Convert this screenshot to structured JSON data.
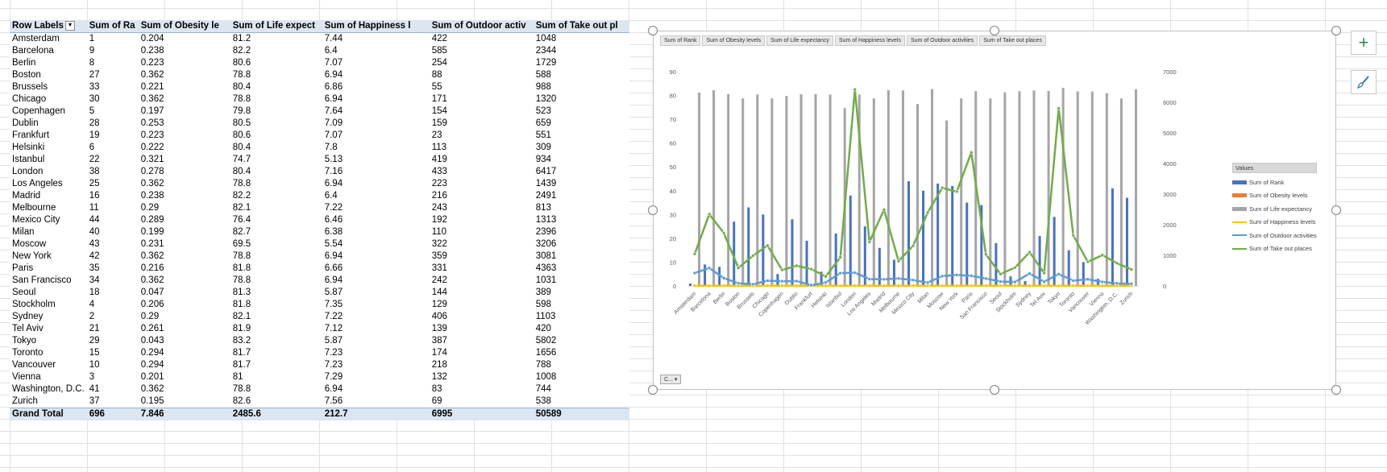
{
  "pivot": {
    "headers": [
      "Row Labels",
      "Sum of Ra",
      "Sum of Obesity le",
      "Sum of Life expect",
      "Sum of Happiness l",
      "Sum of Outdoor activ",
      "Sum of Take out pl"
    ],
    "rows": [
      [
        "Amsterdam",
        "1",
        "0.204",
        "81.2",
        "7.44",
        "422",
        "1048"
      ],
      [
        "Barcelona",
        "9",
        "0.238",
        "82.2",
        "6.4",
        "585",
        "2344"
      ],
      [
        "Berlin",
        "8",
        "0.223",
        "80.6",
        "7.07",
        "254",
        "1729"
      ],
      [
        "Boston",
        "27",
        "0.362",
        "78.8",
        "6.94",
        "88",
        "588"
      ],
      [
        "Brussels",
        "33",
        "0.221",
        "80.4",
        "6.86",
        "55",
        "988"
      ],
      [
        "Chicago",
        "30",
        "0.362",
        "78.8",
        "6.94",
        "171",
        "1320"
      ],
      [
        "Copenhagen",
        "5",
        "0.197",
        "79.8",
        "7.64",
        "154",
        "523"
      ],
      [
        "Dublin",
        "28",
        "0.253",
        "80.5",
        "7.09",
        "159",
        "659"
      ],
      [
        "Frankfurt",
        "19",
        "0.223",
        "80.6",
        "7.07",
        "23",
        "551"
      ],
      [
        "Helsinki",
        "6",
        "0.222",
        "80.4",
        "7.8",
        "113",
        "309"
      ],
      [
        "Istanbul",
        "22",
        "0.321",
        "74.7",
        "5.13",
        "419",
        "934"
      ],
      [
        "London",
        "38",
        "0.278",
        "80.4",
        "7.16",
        "433",
        "6417"
      ],
      [
        "Los Angeles",
        "25",
        "0.362",
        "78.8",
        "6.94",
        "223",
        "1439"
      ],
      [
        "Madrid",
        "16",
        "0.238",
        "82.2",
        "6.4",
        "216",
        "2491"
      ],
      [
        "Melbourne",
        "11",
        "0.29",
        "82.1",
        "7.22",
        "243",
        "813"
      ],
      [
        "Mexico City",
        "44",
        "0.289",
        "76.4",
        "6.46",
        "192",
        "1313"
      ],
      [
        "Milan",
        "40",
        "0.199",
        "82.7",
        "6.38",
        "110",
        "2396"
      ],
      [
        "Moscow",
        "43",
        "0.231",
        "69.5",
        "5.54",
        "322",
        "3206"
      ],
      [
        "New York",
        "42",
        "0.362",
        "78.8",
        "6.94",
        "359",
        "3081"
      ],
      [
        "Paris",
        "35",
        "0.216",
        "81.8",
        "6.66",
        "331",
        "4363"
      ],
      [
        "San Francisco",
        "34",
        "0.362",
        "78.8",
        "6.94",
        "242",
        "1031"
      ],
      [
        "Seoul",
        "18",
        "0.047",
        "81.3",
        "5.87",
        "144",
        "389"
      ],
      [
        "Stockholm",
        "4",
        "0.206",
        "81.8",
        "7.35",
        "129",
        "598"
      ],
      [
        "Sydney",
        "2",
        "0.29",
        "82.1",
        "7.22",
        "406",
        "1103"
      ],
      [
        "Tel Aviv",
        "21",
        "0.261",
        "81.9",
        "7.12",
        "139",
        "420"
      ],
      [
        "Tokyo",
        "29",
        "0.043",
        "83.2",
        "5.87",
        "387",
        "5802"
      ],
      [
        "Toronto",
        "15",
        "0.294",
        "81.7",
        "7.23",
        "174",
        "1656"
      ],
      [
        "Vancouver",
        "10",
        "0.294",
        "81.7",
        "7.23",
        "218",
        "788"
      ],
      [
        "Vienna",
        "3",
        "0.201",
        "81",
        "7.29",
        "132",
        "1008"
      ],
      [
        "Washington, D.C.",
        "41",
        "0.362",
        "78.8",
        "6.94",
        "83",
        "744"
      ],
      [
        "Zurich",
        "37",
        "0.195",
        "82.6",
        "7.56",
        "69",
        "538"
      ]
    ],
    "total": [
      "Grand Total",
      "696",
      "7.846",
      "2485.6",
      "212.7",
      "6995",
      "50589"
    ]
  },
  "chart": {
    "field_buttons": [
      "Sum of Rank",
      "Sum of Obesity levels",
      "Sum of Life expectancy",
      "Sum of Happiness levels",
      "Sum of Outdoor activities",
      "Sum of Take out places"
    ],
    "legend_title": "Values",
    "axis_field_button": "C...",
    "colors": {
      "rank": "#4472c4",
      "obesity": "#ed7d31",
      "life": "#a5a5a5",
      "happiness": "#ffc000",
      "outdoor": "#5b9bd5",
      "takeout": "#70ad47"
    }
  },
  "chart_data": {
    "type": "bar",
    "categories": [
      "Amsterdam",
      "Barcelona",
      "Berlin",
      "Boston",
      "Brussels",
      "Chicago",
      "Copenhagen",
      "Dublin",
      "Frankfurt",
      "Helsinki",
      "Istanbul",
      "London",
      "Los Angeles",
      "Madrid",
      "Melbourne",
      "Mexico City",
      "Milan",
      "Moscow",
      "New York",
      "Paris",
      "San Francisco",
      "Seoul",
      "Stockholm",
      "Sydney",
      "Tel Aviv",
      "Tokyo",
      "Toronto",
      "Vancouver",
      "Vienna",
      "Washington, D.C.",
      "Zurich"
    ],
    "series": [
      {
        "name": "Sum of Rank",
        "kind": "bar",
        "axis": "primary",
        "values": [
          1,
          9,
          8,
          27,
          33,
          30,
          5,
          28,
          19,
          6,
          22,
          38,
          25,
          16,
          11,
          44,
          40,
          43,
          42,
          35,
          34,
          18,
          4,
          2,
          21,
          29,
          15,
          10,
          3,
          41,
          37
        ]
      },
      {
        "name": "Sum of Obesity levels",
        "kind": "bar",
        "axis": "primary",
        "values": [
          0.204,
          0.238,
          0.223,
          0.362,
          0.221,
          0.362,
          0.197,
          0.253,
          0.223,
          0.222,
          0.321,
          0.278,
          0.362,
          0.238,
          0.29,
          0.289,
          0.199,
          0.231,
          0.362,
          0.216,
          0.362,
          0.047,
          0.206,
          0.29,
          0.261,
          0.043,
          0.294,
          0.294,
          0.201,
          0.362,
          0.195
        ]
      },
      {
        "name": "Sum of Life expectancy",
        "kind": "bar",
        "axis": "primary",
        "values": [
          81.2,
          82.2,
          80.6,
          78.8,
          80.4,
          78.8,
          79.8,
          80.5,
          80.6,
          80.4,
          74.7,
          80.4,
          78.8,
          82.2,
          82.1,
          76.4,
          82.7,
          69.5,
          78.8,
          81.8,
          78.8,
          81.3,
          81.8,
          82.1,
          81.9,
          83.2,
          81.7,
          81.7,
          81,
          78.8,
          82.6
        ]
      },
      {
        "name": "Sum of Happiness levels",
        "kind": "line",
        "axis": "secondary",
        "values": [
          7.44,
          6.4,
          7.07,
          6.94,
          6.86,
          6.94,
          7.64,
          7.09,
          7.07,
          7.8,
          5.13,
          7.16,
          6.94,
          6.4,
          7.22,
          6.46,
          6.38,
          5.54,
          6.94,
          6.66,
          6.94,
          5.87,
          7.35,
          7.22,
          7.12,
          5.87,
          7.23,
          7.23,
          7.29,
          6.94,
          7.56
        ]
      },
      {
        "name": "Sum of Outdoor activities",
        "kind": "line",
        "axis": "secondary",
        "values": [
          422,
          585,
          254,
          88,
          55,
          171,
          154,
          159,
          23,
          113,
          419,
          433,
          223,
          216,
          243,
          192,
          110,
          322,
          359,
          331,
          242,
          144,
          129,
          406,
          139,
          387,
          174,
          218,
          132,
          83,
          69
        ]
      },
      {
        "name": "Sum of Take out places",
        "kind": "line",
        "axis": "secondary",
        "values": [
          1048,
          2344,
          1729,
          588,
          988,
          1320,
          523,
          659,
          551,
          309,
          934,
          6417,
          1439,
          2491,
          813,
          1313,
          2396,
          3206,
          3081,
          4363,
          1031,
          389,
          598,
          1103,
          420,
          5802,
          1656,
          788,
          1008,
          744,
          538
        ]
      }
    ],
    "ylim": [
      0,
      90
    ],
    "y_ticks": [
      0,
      10,
      20,
      30,
      40,
      50,
      60,
      70,
      80,
      90
    ],
    "y2lim": [
      0,
      7000
    ],
    "y2_ticks": [
      0,
      1000,
      2000,
      3000,
      4000,
      5000,
      6000,
      7000
    ],
    "legend_position": "right",
    "grid": false
  }
}
